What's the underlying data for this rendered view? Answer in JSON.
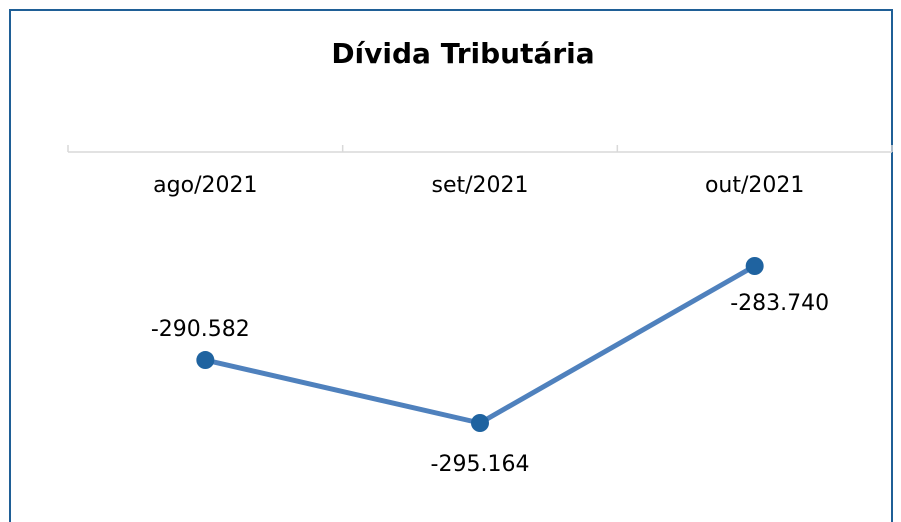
{
  "chart_data": {
    "type": "line",
    "title": "Dívida Tributária",
    "categories": [
      "ago/2021",
      "set/2021",
      "out/2021"
    ],
    "series": [
      {
        "name": "Dívida Tributária",
        "color": "#4f81bd",
        "marker_color": "#1f63a0",
        "values": [
          -290582,
          -295164,
          -283740
        ],
        "value_labels": [
          "-290.582",
          "-295.164",
          "-283.740"
        ]
      }
    ],
    "grid": false
  }
}
